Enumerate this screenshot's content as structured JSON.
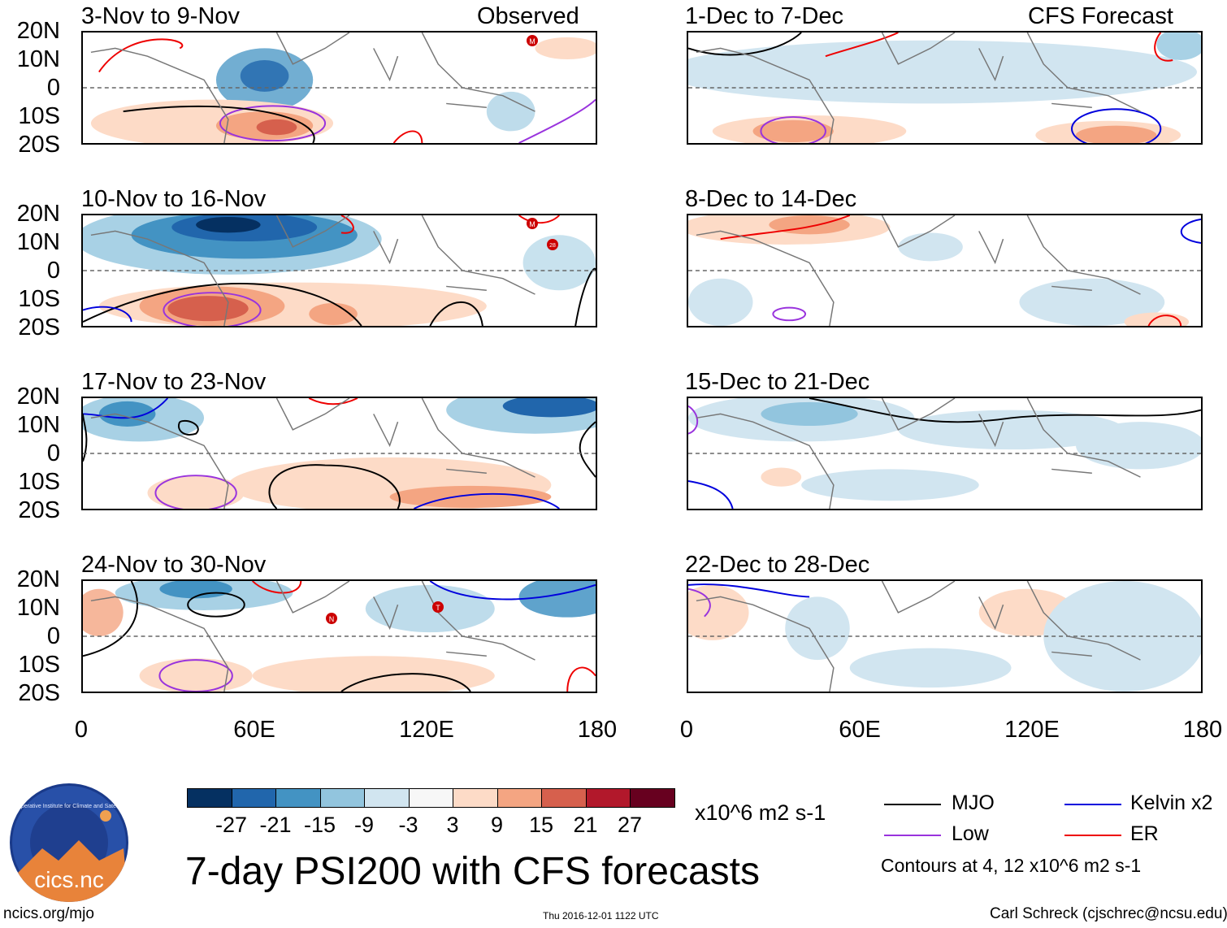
{
  "header": {
    "left_title": "Observed",
    "right_title": "CFS Forecast"
  },
  "panels_left": [
    {
      "title": "3-Nov to 9-Nov"
    },
    {
      "title": "10-Nov to 16-Nov"
    },
    {
      "title": "17-Nov to 23-Nov"
    },
    {
      "title": "24-Nov to 30-Nov"
    }
  ],
  "panels_right": [
    {
      "title": "1-Dec to 7-Dec"
    },
    {
      "title": "8-Dec to 14-Dec"
    },
    {
      "title": "15-Dec to 21-Dec"
    },
    {
      "title": "22-Dec to 28-Dec"
    }
  ],
  "lat_labels": [
    "20N",
    "10N",
    "0",
    "10S",
    "20S"
  ],
  "lon_labels": [
    "0",
    "60E",
    "120E",
    "180"
  ],
  "colorbar": {
    "colors": [
      "#053061",
      "#2166ac",
      "#4393c3",
      "#92c5de",
      "#d1e5f0",
      "#f7f7f7",
      "#fddbc7",
      "#f4a582",
      "#d6604d",
      "#b2182b",
      "#67001f"
    ],
    "labels": [
      "-27",
      "-21",
      "-15",
      "-9",
      "-3",
      "3",
      "9",
      "15",
      "21",
      "27"
    ],
    "units": "x10^6 m2 s-1"
  },
  "legend": {
    "items": [
      {
        "label": "MJO",
        "color": "#000000"
      },
      {
        "label": "Kelvin x2",
        "color": "#0000dd"
      },
      {
        "label": "Low",
        "color": "#9933dd"
      },
      {
        "label": "ER",
        "color": "#ee0000"
      }
    ],
    "note": "Contours at 4, 12 x10^6 m2 s-1"
  },
  "main_title": "7-day PSI200 with CFS forecasts",
  "logo": {
    "text": "cics.nc",
    "ring_text": "Cooperative Institute for Climate and Satellites"
  },
  "footer": {
    "url": "ncics.org/mjo",
    "timestamp": "Thu 2016-12-01 1122 UTC",
    "author": "Carl Schreck (cjschrec@ncsu.edu)"
  },
  "storm_markers": [
    "M",
    "M",
    "28",
    "N",
    "T"
  ]
}
